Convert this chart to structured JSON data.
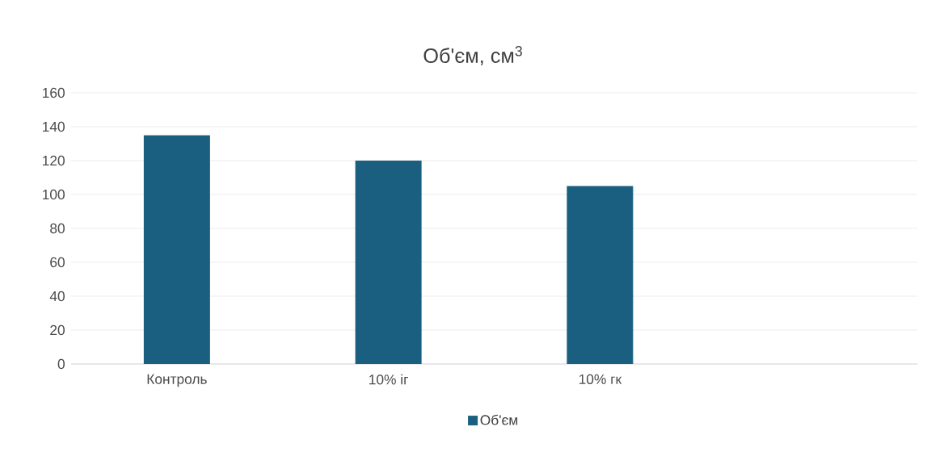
{
  "chart_data": {
    "type": "bar",
    "title": "Об'єм, см$^{3}$",
    "categories": [
      "Контроль",
      "10% іг",
      "10% гк",
      null
    ],
    "series": [
      {
        "name": "Об'єм",
        "color": "#1a5f80",
        "values": [
          135,
          120,
          105,
          null
        ]
      }
    ],
    "ylim": [
      0,
      160
    ],
    "yticks": [
      0,
      20,
      40,
      60,
      80,
      100,
      120,
      140,
      160
    ],
    "grid": "y",
    "legend": "bottom"
  }
}
